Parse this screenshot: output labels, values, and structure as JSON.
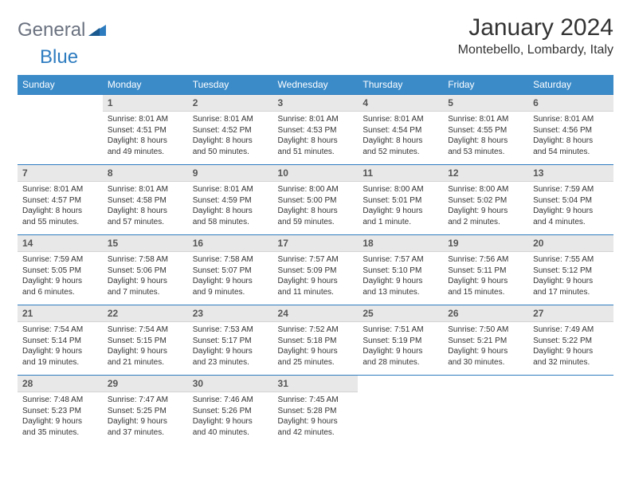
{
  "logo": {
    "text1": "General",
    "text2": "Blue"
  },
  "title": "January 2024",
  "location": "Montebello, Lombardy, Italy",
  "weekdays": [
    "Sunday",
    "Monday",
    "Tuesday",
    "Wednesday",
    "Thursday",
    "Friday",
    "Saturday"
  ],
  "colors": {
    "header_bg": "#3b8bc9",
    "header_text": "#ffffff",
    "daynum_bg": "#e8e8e8",
    "border": "#2e7cc0",
    "logo_gray": "#6b7280",
    "logo_blue": "#2e7cc0"
  },
  "weeks": [
    [
      null,
      {
        "n": "1",
        "sr": "Sunrise: 8:01 AM",
        "ss": "Sunset: 4:51 PM",
        "d1": "Daylight: 8 hours",
        "d2": "and 49 minutes."
      },
      {
        "n": "2",
        "sr": "Sunrise: 8:01 AM",
        "ss": "Sunset: 4:52 PM",
        "d1": "Daylight: 8 hours",
        "d2": "and 50 minutes."
      },
      {
        "n": "3",
        "sr": "Sunrise: 8:01 AM",
        "ss": "Sunset: 4:53 PM",
        "d1": "Daylight: 8 hours",
        "d2": "and 51 minutes."
      },
      {
        "n": "4",
        "sr": "Sunrise: 8:01 AM",
        "ss": "Sunset: 4:54 PM",
        "d1": "Daylight: 8 hours",
        "d2": "and 52 minutes."
      },
      {
        "n": "5",
        "sr": "Sunrise: 8:01 AM",
        "ss": "Sunset: 4:55 PM",
        "d1": "Daylight: 8 hours",
        "d2": "and 53 minutes."
      },
      {
        "n": "6",
        "sr": "Sunrise: 8:01 AM",
        "ss": "Sunset: 4:56 PM",
        "d1": "Daylight: 8 hours",
        "d2": "and 54 minutes."
      }
    ],
    [
      {
        "n": "7",
        "sr": "Sunrise: 8:01 AM",
        "ss": "Sunset: 4:57 PM",
        "d1": "Daylight: 8 hours",
        "d2": "and 55 minutes."
      },
      {
        "n": "8",
        "sr": "Sunrise: 8:01 AM",
        "ss": "Sunset: 4:58 PM",
        "d1": "Daylight: 8 hours",
        "d2": "and 57 minutes."
      },
      {
        "n": "9",
        "sr": "Sunrise: 8:01 AM",
        "ss": "Sunset: 4:59 PM",
        "d1": "Daylight: 8 hours",
        "d2": "and 58 minutes."
      },
      {
        "n": "10",
        "sr": "Sunrise: 8:00 AM",
        "ss": "Sunset: 5:00 PM",
        "d1": "Daylight: 8 hours",
        "d2": "and 59 minutes."
      },
      {
        "n": "11",
        "sr": "Sunrise: 8:00 AM",
        "ss": "Sunset: 5:01 PM",
        "d1": "Daylight: 9 hours",
        "d2": "and 1 minute."
      },
      {
        "n": "12",
        "sr": "Sunrise: 8:00 AM",
        "ss": "Sunset: 5:02 PM",
        "d1": "Daylight: 9 hours",
        "d2": "and 2 minutes."
      },
      {
        "n": "13",
        "sr": "Sunrise: 7:59 AM",
        "ss": "Sunset: 5:04 PM",
        "d1": "Daylight: 9 hours",
        "d2": "and 4 minutes."
      }
    ],
    [
      {
        "n": "14",
        "sr": "Sunrise: 7:59 AM",
        "ss": "Sunset: 5:05 PM",
        "d1": "Daylight: 9 hours",
        "d2": "and 6 minutes."
      },
      {
        "n": "15",
        "sr": "Sunrise: 7:58 AM",
        "ss": "Sunset: 5:06 PM",
        "d1": "Daylight: 9 hours",
        "d2": "and 7 minutes."
      },
      {
        "n": "16",
        "sr": "Sunrise: 7:58 AM",
        "ss": "Sunset: 5:07 PM",
        "d1": "Daylight: 9 hours",
        "d2": "and 9 minutes."
      },
      {
        "n": "17",
        "sr": "Sunrise: 7:57 AM",
        "ss": "Sunset: 5:09 PM",
        "d1": "Daylight: 9 hours",
        "d2": "and 11 minutes."
      },
      {
        "n": "18",
        "sr": "Sunrise: 7:57 AM",
        "ss": "Sunset: 5:10 PM",
        "d1": "Daylight: 9 hours",
        "d2": "and 13 minutes."
      },
      {
        "n": "19",
        "sr": "Sunrise: 7:56 AM",
        "ss": "Sunset: 5:11 PM",
        "d1": "Daylight: 9 hours",
        "d2": "and 15 minutes."
      },
      {
        "n": "20",
        "sr": "Sunrise: 7:55 AM",
        "ss": "Sunset: 5:12 PM",
        "d1": "Daylight: 9 hours",
        "d2": "and 17 minutes."
      }
    ],
    [
      {
        "n": "21",
        "sr": "Sunrise: 7:54 AM",
        "ss": "Sunset: 5:14 PM",
        "d1": "Daylight: 9 hours",
        "d2": "and 19 minutes."
      },
      {
        "n": "22",
        "sr": "Sunrise: 7:54 AM",
        "ss": "Sunset: 5:15 PM",
        "d1": "Daylight: 9 hours",
        "d2": "and 21 minutes."
      },
      {
        "n": "23",
        "sr": "Sunrise: 7:53 AM",
        "ss": "Sunset: 5:17 PM",
        "d1": "Daylight: 9 hours",
        "d2": "and 23 minutes."
      },
      {
        "n": "24",
        "sr": "Sunrise: 7:52 AM",
        "ss": "Sunset: 5:18 PM",
        "d1": "Daylight: 9 hours",
        "d2": "and 25 minutes."
      },
      {
        "n": "25",
        "sr": "Sunrise: 7:51 AM",
        "ss": "Sunset: 5:19 PM",
        "d1": "Daylight: 9 hours",
        "d2": "and 28 minutes."
      },
      {
        "n": "26",
        "sr": "Sunrise: 7:50 AM",
        "ss": "Sunset: 5:21 PM",
        "d1": "Daylight: 9 hours",
        "d2": "and 30 minutes."
      },
      {
        "n": "27",
        "sr": "Sunrise: 7:49 AM",
        "ss": "Sunset: 5:22 PM",
        "d1": "Daylight: 9 hours",
        "d2": "and 32 minutes."
      }
    ],
    [
      {
        "n": "28",
        "sr": "Sunrise: 7:48 AM",
        "ss": "Sunset: 5:23 PM",
        "d1": "Daylight: 9 hours",
        "d2": "and 35 minutes."
      },
      {
        "n": "29",
        "sr": "Sunrise: 7:47 AM",
        "ss": "Sunset: 5:25 PM",
        "d1": "Daylight: 9 hours",
        "d2": "and 37 minutes."
      },
      {
        "n": "30",
        "sr": "Sunrise: 7:46 AM",
        "ss": "Sunset: 5:26 PM",
        "d1": "Daylight: 9 hours",
        "d2": "and 40 minutes."
      },
      {
        "n": "31",
        "sr": "Sunrise: 7:45 AM",
        "ss": "Sunset: 5:28 PM",
        "d1": "Daylight: 9 hours",
        "d2": "and 42 minutes."
      },
      null,
      null,
      null
    ]
  ]
}
